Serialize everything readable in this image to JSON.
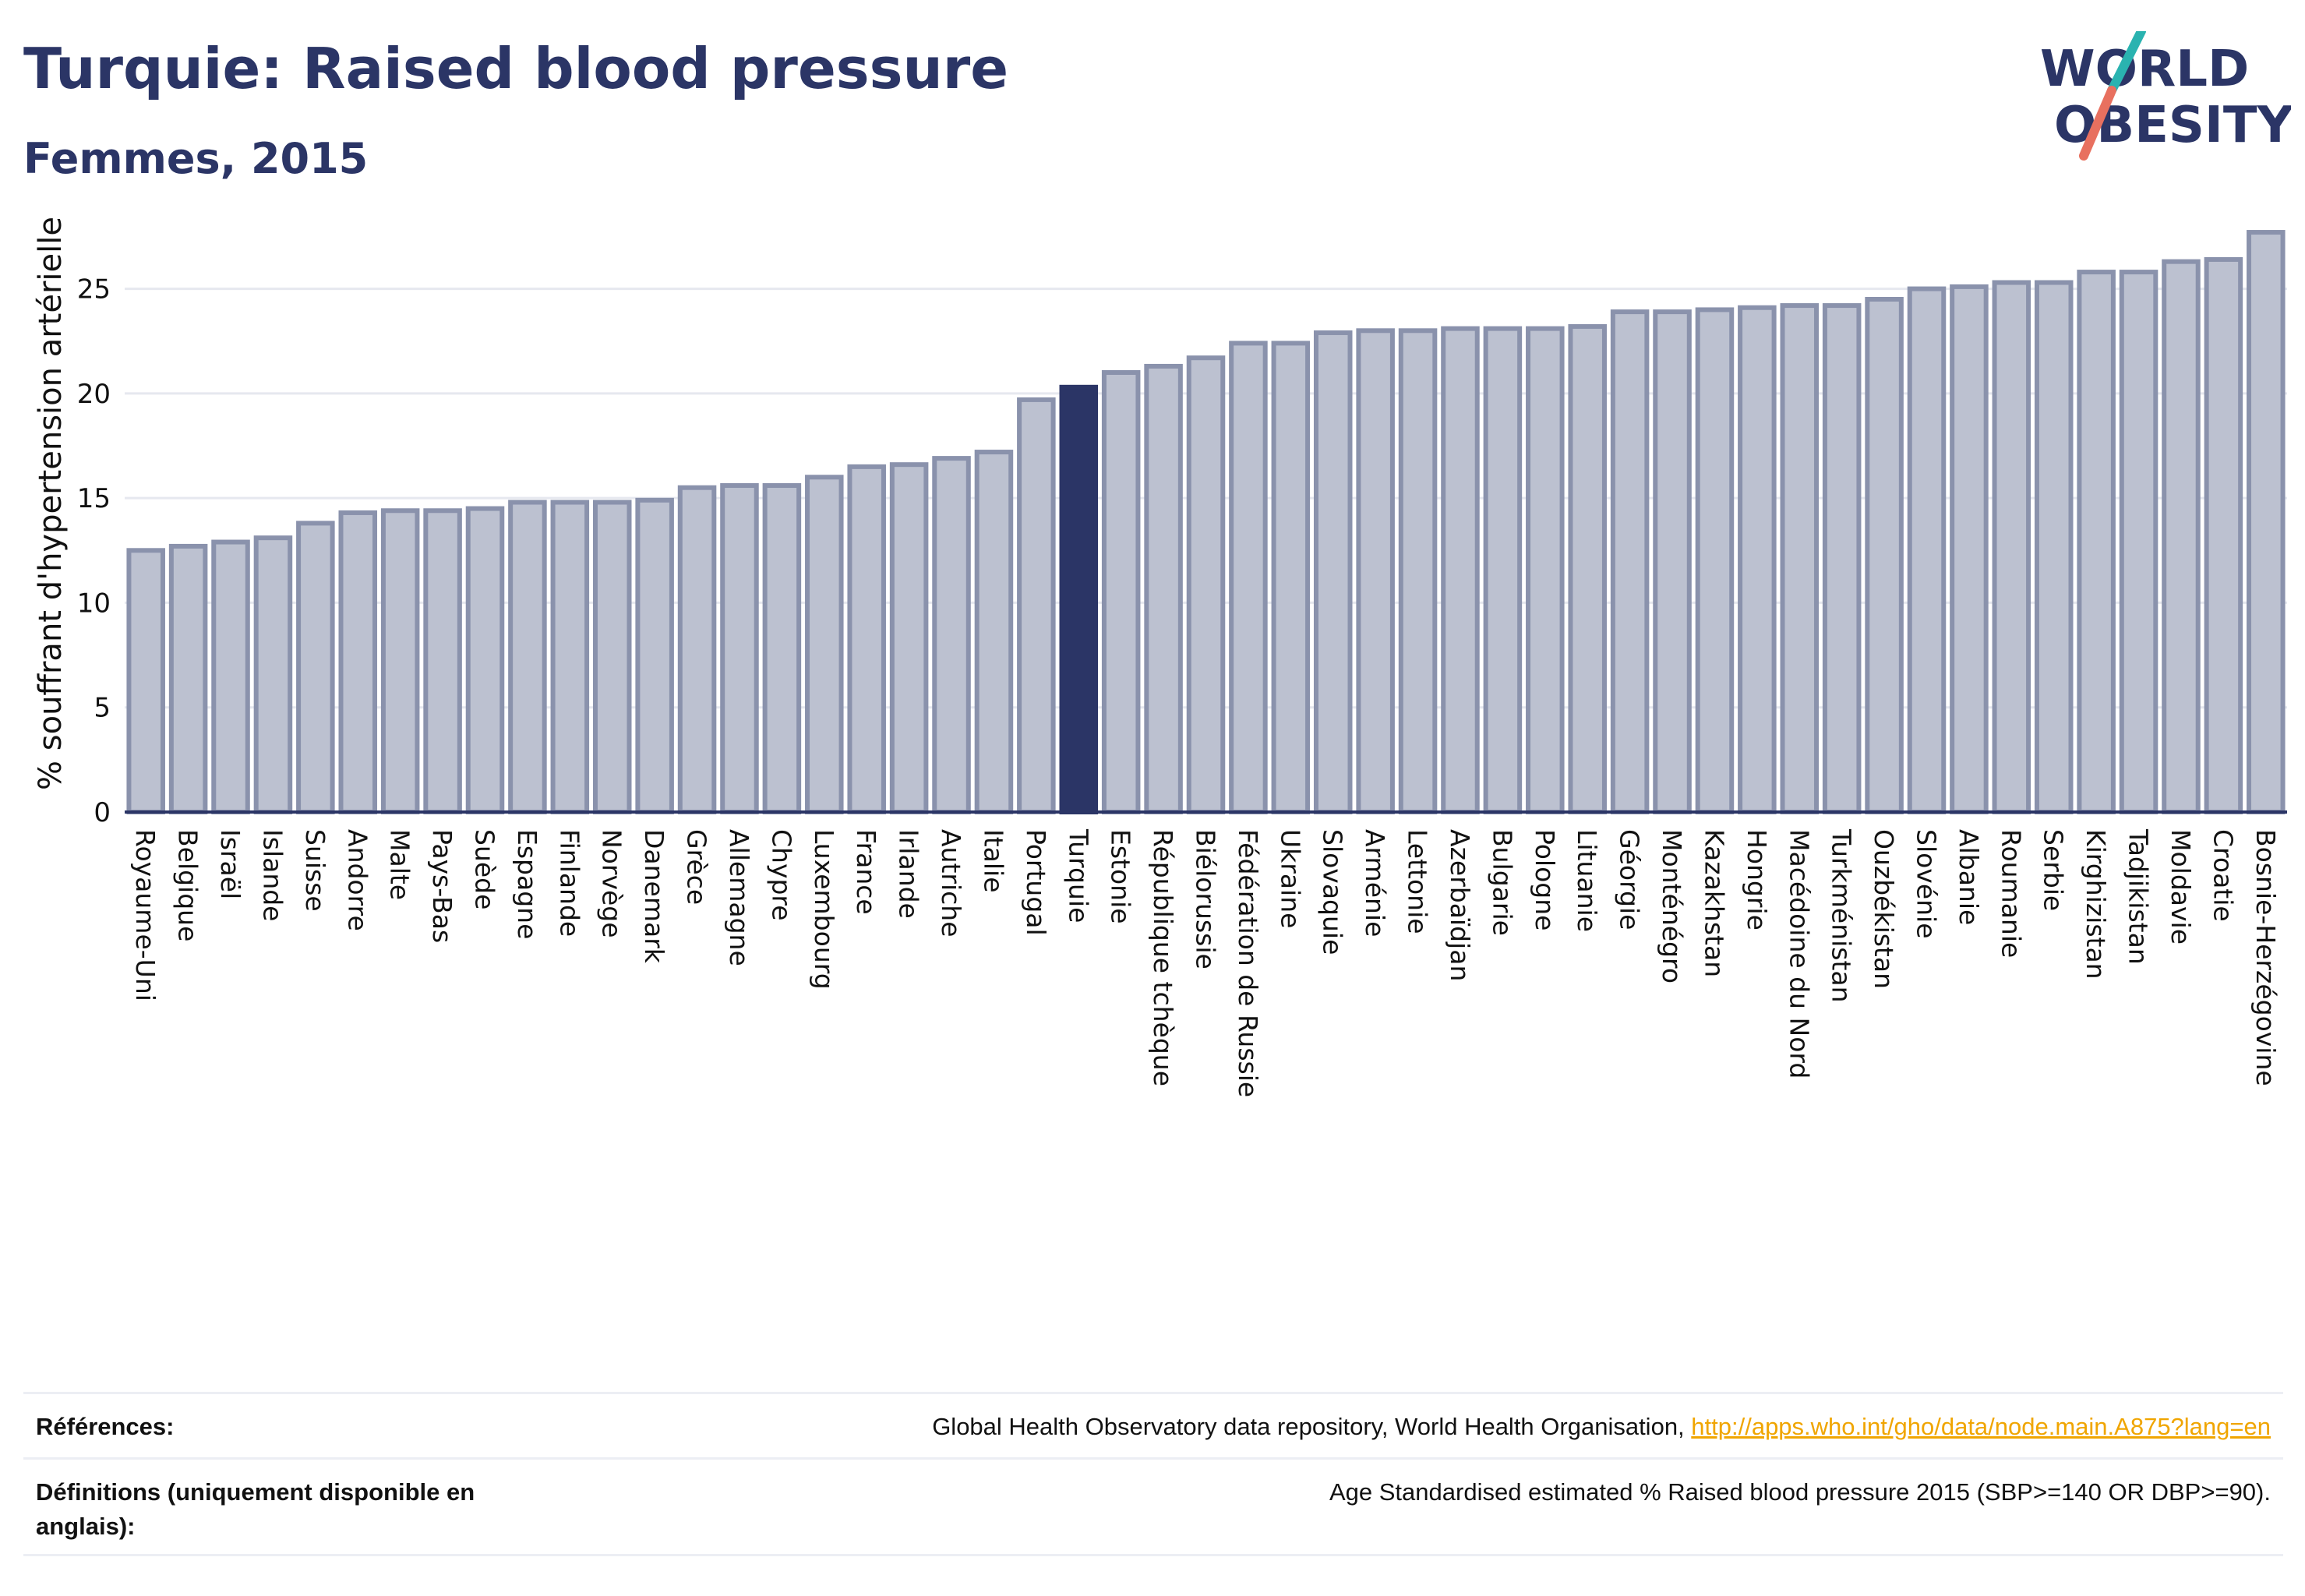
{
  "header": {
    "title": "Turquie: Raised blood pressure",
    "subtitle": "Femmes, 2015"
  },
  "logo": {
    "line1": "WORLD",
    "line2": "OBESITY",
    "colors": {
      "text": "#2b3566",
      "slash_teal": "#2ab3b0",
      "slash_coral": "#e8705f"
    }
  },
  "colors": {
    "bar_fill": "#bcc1d0",
    "bar_stroke": "#8a92ac",
    "highlight_fill": "#2b3566",
    "grid": "#e6e8ef",
    "axis": "#2b3566"
  },
  "chart_data": {
    "type": "bar",
    "ylabel": "% souffrant d'hypertension artérielle",
    "ylim": [
      0,
      28
    ],
    "yticks": [
      0,
      5,
      10,
      15,
      20,
      25
    ],
    "grid": true,
    "highlight": "Turquie",
    "categories": [
      "Royaume-Uni",
      "Belgique",
      "Israël",
      "Islande",
      "Suisse",
      "Andorre",
      "Malte",
      "Pays-Bas",
      "Suède",
      "Espagne",
      "Finlande",
      "Norvège",
      "Danemark",
      "Grèce",
      "Allemagne",
      "Chypre",
      "Luxembourg",
      "France",
      "Irlande",
      "Autriche",
      "Italie",
      "Portugal",
      "Turquie",
      "Estonie",
      "République tchèque",
      "Biélorussie",
      "Fédération de Russie",
      "Ukraine",
      "Slovaquie",
      "Arménie",
      "Lettonie",
      "Azerbaïdjan",
      "Bulgarie",
      "Pologne",
      "Lituanie",
      "Géorgie",
      "Monténégro",
      "Kazakhstan",
      "Hongrie",
      "Macédoine du Nord",
      "Turkménistan",
      "Ouzbékistan",
      "Slovénie",
      "Albanie",
      "Roumanie",
      "Serbie",
      "Kirghizistan",
      "Tadjikistan",
      "Moldavie",
      "Croatie",
      "Bosnie-Herzégovine"
    ],
    "values": [
      12.5,
      12.7,
      12.9,
      13.1,
      13.8,
      14.3,
      14.4,
      14.4,
      14.5,
      14.8,
      14.8,
      14.8,
      14.9,
      15.5,
      15.6,
      15.6,
      16.0,
      16.5,
      16.6,
      16.9,
      17.2,
      19.7,
      20.3,
      21.0,
      21.3,
      21.7,
      22.4,
      22.4,
      22.9,
      23.0,
      23.0,
      23.1,
      23.1,
      23.1,
      23.2,
      23.9,
      23.9,
      24.0,
      24.1,
      24.2,
      24.2,
      24.5,
      25.0,
      25.1,
      25.3,
      25.3,
      25.8,
      25.8,
      26.3,
      26.4,
      27.7
    ]
  },
  "footer": {
    "references_label": "Références:",
    "references_text": "Global Health Observatory data repository, World Health Organisation, ",
    "references_link": "http://apps.who.int/gho/data/node.main.A875?lang=en",
    "definitions_label_line1": "Définitions (uniquement disponible en",
    "definitions_label_line2": "anglais):",
    "definitions_text": "Age Standardised estimated % Raised blood pressure 2015 (SBP>=140 OR DBP>=90)."
  }
}
